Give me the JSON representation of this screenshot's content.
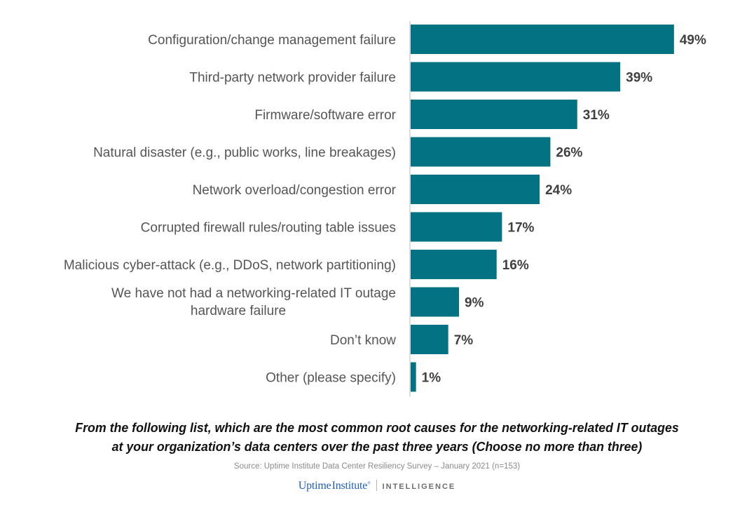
{
  "chart_data": {
    "type": "bar",
    "orientation": "horizontal",
    "title": "From the following list, which are the most common root causes for the networking-related IT outages at your organization’s data centers over the past three years (Choose no more than three)",
    "xlabel": "",
    "ylabel": "",
    "xlim": [
      0,
      50
    ],
    "grid": false,
    "legend": "none",
    "unit": "%",
    "bar_color": "#037383",
    "categories": [
      "Configuration/change management failure",
      "Third-party network provider failure",
      "Firmware/software error",
      "Natural disaster (e.g., public works, line breakages)",
      "Network overload/congestion error",
      "Corrupted firewall rules/routing table issues",
      "Malicious cyber-attack (e.g., DDoS, network partitioning)",
      "We have not had a networking-related IT outage hardware failure",
      "Don’t know",
      "Other (please specify)"
    ],
    "category_lines": [
      [
        "Configuration/change management failure"
      ],
      [
        "Third-party network provider failure"
      ],
      [
        "Firmware/software error"
      ],
      [
        "Natural disaster (e.g., public works, line breakages)"
      ],
      [
        "Network overload/congestion error"
      ],
      [
        "Corrupted firewall rules/routing table issues"
      ],
      [
        "Malicious cyber-attack (e.g., DDoS, network partitioning)"
      ],
      [
        "We have not had a networking-related IT outage",
        "hardware failure"
      ],
      [
        "Don’t know"
      ],
      [
        "Other (please specify)"
      ]
    ],
    "values": [
      49,
      39,
      31,
      26,
      24,
      17,
      16,
      9,
      7,
      1
    ],
    "value_labels": [
      "49%",
      "39%",
      "31%",
      "26%",
      "24%",
      "17%",
      "16%",
      "9%",
      "7%",
      "1%"
    ]
  },
  "question": {
    "line1": "From the following list, which are the most common root causes for the networking-related IT outages",
    "line2": "at your organization’s data centers over the past three years (Choose no more than three)"
  },
  "source": "Source: Uptime Institute Data Center Resiliency Survey – January 2021 (n=153)",
  "logo": {
    "brand_part1": "Uptime",
    "brand_part2": "Institute",
    "registered": "®",
    "tagline": "INTELLIGENCE"
  }
}
